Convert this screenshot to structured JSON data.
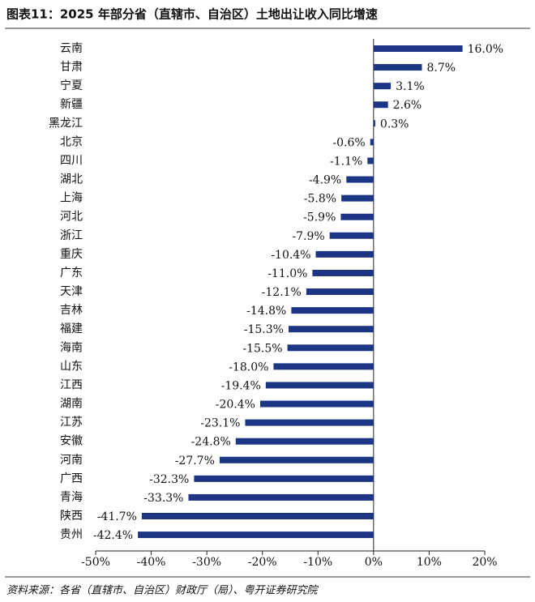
{
  "chart_data": {
    "type": "barh",
    "title": "图表11：2025 年部分省（直辖市、自治区）土地出让收入同比增速",
    "source": "资料来源：各省（直辖市、自治区）财政厅（局）、粤开证券研究院",
    "categories": [
      "云南",
      "甘肃",
      "宁夏",
      "新疆",
      "黑龙江",
      "北京",
      "四川",
      "湖北",
      "上海",
      "河北",
      "浙江",
      "重庆",
      "广东",
      "天津",
      "吉林",
      "福建",
      "海南",
      "山东",
      "江西",
      "湖南",
      "江苏",
      "安徽",
      "河南",
      "广西",
      "青海",
      "陕西",
      "贵州"
    ],
    "values": [
      16.0,
      8.7,
      3.1,
      2.6,
      0.3,
      -0.6,
      -1.1,
      -4.9,
      -5.8,
      -5.9,
      -7.9,
      -10.4,
      -11.0,
      -12.1,
      -14.8,
      -15.3,
      -15.5,
      -18.0,
      -19.4,
      -20.4,
      -23.1,
      -24.8,
      -27.7,
      -32.3,
      -33.3,
      -41.7,
      -42.4
    ],
    "value_labels": [
      "16.0%",
      "8.7%",
      "3.1%",
      "2.6%",
      "0.3%",
      "-0.6%",
      "-1.1%",
      "-4.9%",
      "-5.8%",
      "-5.9%",
      "-7.9%",
      "-10.4%",
      "-11.0%",
      "-12.1%",
      "-14.8%",
      "-15.3%",
      "-15.5%",
      "-18.0%",
      "-19.4%",
      "-20.4%",
      "-23.1%",
      "-24.8%",
      "-27.7%",
      "-32.3%",
      "-33.3%",
      "-41.7%",
      "-42.4%"
    ],
    "color": "#1c3584",
    "xlim": [
      -50,
      20
    ],
    "xticks": [
      {
        "value": -50,
        "label": "-50%"
      },
      {
        "value": -40,
        "label": "-40%"
      },
      {
        "value": -30,
        "label": "-30%"
      },
      {
        "value": -20,
        "label": "-20%"
      },
      {
        "value": -10,
        "label": "-10%"
      },
      {
        "value": 0,
        "label": "0%"
      },
      {
        "value": 10,
        "label": "10%"
      },
      {
        "value": 20,
        "label": "20%"
      }
    ]
  }
}
